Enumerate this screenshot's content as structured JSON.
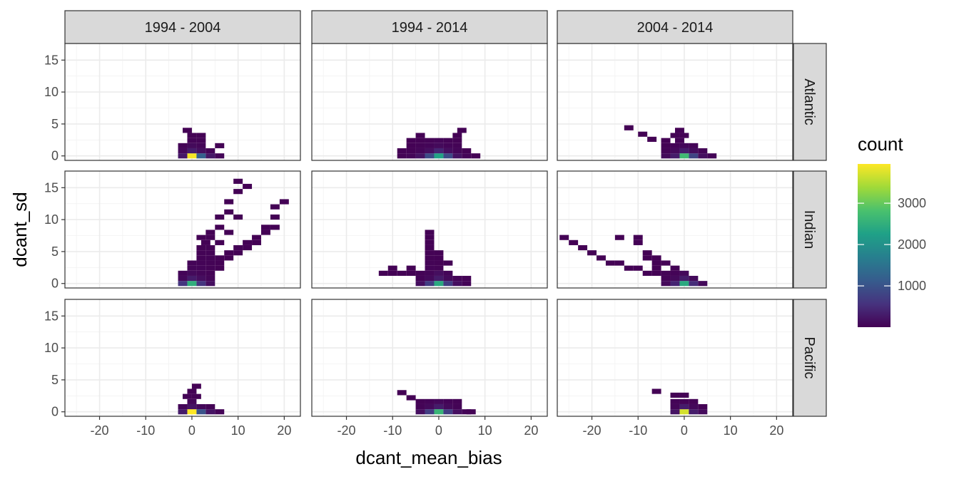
{
  "chart_data": {
    "type": "heatmap",
    "xlabel": "dcant_mean_bias",
    "ylabel": "dcant_sd",
    "xlim": [
      -27.5,
      23.5
    ],
    "ylim": [
      -0.7,
      17.6
    ],
    "x_ticks": [
      -20,
      -10,
      0,
      10,
      20
    ],
    "y_ticks": [
      0,
      5,
      10,
      15
    ],
    "bin_width": 2,
    "bin_height": 0.8,
    "legend": {
      "title": "count",
      "min": 1,
      "max": 3950,
      "ticks": [
        1000,
        2000,
        3000
      ],
      "colors": [
        "#440154",
        "#46337e",
        "#365c8d",
        "#277f8e",
        "#1fa187",
        "#4ac16d",
        "#a0da39",
        "#fde725"
      ]
    },
    "col_facets": [
      "1994 - 2004",
      "1994 - 2014",
      "2004 - 2014"
    ],
    "row_facets": [
      "Atlantic",
      "Indian",
      "Pacific"
    ],
    "panels": [
      {
        "col": "1994 - 2004",
        "row": "Atlantic",
        "cells": [
          [
            0,
            0,
            3900
          ],
          [
            -2,
            0,
            250
          ],
          [
            2,
            0,
            1200
          ],
          [
            4,
            0,
            250
          ],
          [
            6,
            0,
            60
          ],
          [
            0,
            0.8,
            300
          ],
          [
            -2,
            0.8,
            80
          ],
          [
            2,
            0.8,
            150
          ],
          [
            4,
            0.8,
            40
          ],
          [
            0,
            1.6,
            100
          ],
          [
            -2,
            1.6,
            30
          ],
          [
            2,
            1.6,
            60
          ],
          [
            6,
            1.6,
            20
          ],
          [
            0,
            2.4,
            40
          ],
          [
            2,
            2.4,
            30
          ],
          [
            0,
            3.2,
            20
          ],
          [
            2,
            3.2,
            15
          ],
          [
            -1,
            4.0,
            10
          ]
        ]
      },
      {
        "col": "1994 - 2014",
        "row": "Atlantic",
        "cells": [
          [
            0,
            0,
            2300
          ],
          [
            -2,
            0,
            900
          ],
          [
            2,
            0,
            900
          ],
          [
            -4,
            0,
            200
          ],
          [
            4,
            0,
            200
          ],
          [
            -6,
            0,
            60
          ],
          [
            6,
            0,
            50
          ],
          [
            8,
            0,
            20
          ],
          [
            -8,
            0,
            20
          ],
          [
            0,
            0.8,
            400
          ],
          [
            -2,
            0.8,
            150
          ],
          [
            2,
            0.8,
            150
          ],
          [
            -4,
            0.8,
            60
          ],
          [
            4,
            0.8,
            60
          ],
          [
            -6,
            0.8,
            20
          ],
          [
            6,
            0.8,
            20
          ],
          [
            -8,
            0.8,
            15
          ],
          [
            0,
            1.6,
            100
          ],
          [
            -2,
            1.6,
            50
          ],
          [
            2,
            1.6,
            50
          ],
          [
            -4,
            1.6,
            30
          ],
          [
            4,
            1.6,
            30
          ],
          [
            -6,
            1.6,
            15
          ],
          [
            0,
            2.4,
            50
          ],
          [
            -2,
            2.4,
            30
          ],
          [
            2,
            2.4,
            30
          ],
          [
            -4,
            2.4,
            20
          ],
          [
            4,
            2.4,
            20
          ],
          [
            -6,
            2.4,
            10
          ],
          [
            -4,
            3.2,
            10
          ],
          [
            4,
            3.2,
            15
          ],
          [
            5,
            4.0,
            10
          ]
        ]
      },
      {
        "col": "2004 - 2014",
        "row": "Atlantic",
        "cells": [
          [
            0,
            0,
            2700
          ],
          [
            -2,
            0,
            300
          ],
          [
            2,
            0,
            800
          ],
          [
            -4,
            0,
            100
          ],
          [
            4,
            0,
            150
          ],
          [
            6,
            0,
            40
          ],
          [
            0,
            0.8,
            300
          ],
          [
            -2,
            0.8,
            100
          ],
          [
            2,
            0.8,
            120
          ],
          [
            -4,
            0.8,
            30
          ],
          [
            4,
            0.8,
            40
          ],
          [
            0,
            1.6,
            80
          ],
          [
            -2,
            1.6,
            40
          ],
          [
            2,
            1.6,
            40
          ],
          [
            -4,
            1.6,
            20
          ],
          [
            -1,
            2.4,
            30
          ],
          [
            -4,
            2.4,
            15
          ],
          [
            -2,
            3.2,
            20
          ],
          [
            0,
            3.2,
            15
          ],
          [
            -1,
            4.0,
            10
          ],
          [
            -12,
            4.4,
            10
          ],
          [
            -9,
            3.4,
            10
          ],
          [
            -7,
            2.6,
            10
          ]
        ]
      },
      {
        "col": "1994 - 2004",
        "row": "Indian",
        "cells": [
          [
            0,
            0,
            2500
          ],
          [
            -2,
            0,
            600
          ],
          [
            2,
            0,
            600
          ],
          [
            4,
            0,
            150
          ],
          [
            0,
            0.8,
            300
          ],
          [
            -2,
            0.8,
            80
          ],
          [
            2,
            0.8,
            150
          ],
          [
            4,
            0.8,
            60
          ],
          [
            0,
            1.6,
            100
          ],
          [
            -2,
            1.6,
            40
          ],
          [
            2,
            1.6,
            60
          ],
          [
            4,
            1.6,
            30
          ],
          [
            0,
            2.4,
            60
          ],
          [
            2,
            2.4,
            50
          ],
          [
            4,
            2.4,
            30
          ],
          [
            6,
            2.4,
            20
          ],
          [
            0,
            3.2,
            40
          ],
          [
            2,
            3.2,
            40
          ],
          [
            4,
            3.2,
            30
          ],
          [
            6,
            3.2,
            20
          ],
          [
            2,
            4.0,
            30
          ],
          [
            4,
            4.0,
            30
          ],
          [
            6,
            4.0,
            20
          ],
          [
            8,
            4.0,
            20
          ],
          [
            2,
            4.8,
            30
          ],
          [
            4,
            4.8,
            30
          ],
          [
            8,
            4.8,
            15
          ],
          [
            10,
            4.8,
            15
          ],
          [
            2,
            5.6,
            20
          ],
          [
            4,
            5.6,
            20
          ],
          [
            10,
            5.6,
            15
          ],
          [
            12,
            5.6,
            10
          ],
          [
            3,
            6.4,
            15
          ],
          [
            6,
            6.4,
            10
          ],
          [
            12,
            6.4,
            10
          ],
          [
            14,
            6.4,
            10
          ],
          [
            2,
            7.2,
            10
          ],
          [
            4,
            7.2,
            10
          ],
          [
            14,
            7.2,
            10
          ],
          [
            4,
            8.0,
            10
          ],
          [
            8,
            8.0,
            10
          ],
          [
            16,
            8.0,
            10
          ],
          [
            6,
            8.8,
            10
          ],
          [
            16,
            8.8,
            10
          ],
          [
            18,
            8.8,
            10
          ],
          [
            6,
            10.4,
            10
          ],
          [
            10,
            10.4,
            10
          ],
          [
            18,
            10.4,
            10
          ],
          [
            8,
            11.2,
            10
          ],
          [
            18,
            12.0,
            10
          ],
          [
            8,
            12.8,
            10
          ],
          [
            20,
            12.8,
            10
          ],
          [
            10,
            14.4,
            10
          ],
          [
            12,
            15.2,
            10
          ],
          [
            10,
            16.0,
            10
          ]
        ]
      },
      {
        "col": "1994 - 2014",
        "row": "Indian",
        "cells": [
          [
            0,
            0,
            2400
          ],
          [
            -2,
            0,
            700
          ],
          [
            2,
            0,
            700
          ],
          [
            -4,
            0,
            150
          ],
          [
            4,
            0,
            150
          ],
          [
            6,
            0,
            40
          ],
          [
            0,
            0.8,
            300
          ],
          [
            -2,
            0.8,
            100
          ],
          [
            2,
            0.8,
            100
          ],
          [
            -4,
            0.8,
            40
          ],
          [
            4,
            0.8,
            40
          ],
          [
            6,
            0.8,
            20
          ],
          [
            0,
            1.6,
            150
          ],
          [
            -2,
            1.6,
            60
          ],
          [
            2,
            1.6,
            50
          ],
          [
            -4,
            1.6,
            30
          ],
          [
            -6,
            1.6,
            20
          ],
          [
            -8,
            1.6,
            15
          ],
          [
            -10,
            1.6,
            15
          ],
          [
            -12,
            1.6,
            10
          ],
          [
            -2,
            2.4,
            40
          ],
          [
            0,
            2.4,
            30
          ],
          [
            -6,
            2.4,
            15
          ],
          [
            -10,
            2.4,
            10
          ],
          [
            -2,
            3.2,
            30
          ],
          [
            0,
            3.2,
            20
          ],
          [
            2,
            3.2,
            10
          ],
          [
            -2,
            4.0,
            20
          ],
          [
            0,
            4.0,
            15
          ],
          [
            -2,
            4.8,
            20
          ],
          [
            0,
            4.8,
            15
          ],
          [
            -2,
            5.6,
            15
          ],
          [
            -2,
            6.4,
            15
          ],
          [
            -2,
            7.2,
            10
          ],
          [
            -2,
            8.0,
            10
          ]
        ]
      },
      {
        "col": "2004 - 2014",
        "row": "Indian",
        "cells": [
          [
            0,
            0,
            2400
          ],
          [
            -2,
            0,
            400
          ],
          [
            2,
            0,
            500
          ],
          [
            4,
            0,
            100
          ],
          [
            -4,
            0,
            80
          ],
          [
            0,
            0.8,
            300
          ],
          [
            -2,
            0.8,
            100
          ],
          [
            2,
            0.8,
            100
          ],
          [
            -4,
            0.8,
            40
          ],
          [
            0,
            1.6,
            80
          ],
          [
            -2,
            1.6,
            40
          ],
          [
            -4,
            1.6,
            30
          ],
          [
            -6,
            1.6,
            20
          ],
          [
            -8,
            1.6,
            15
          ],
          [
            -2,
            2.4,
            20
          ],
          [
            -6,
            2.4,
            15
          ],
          [
            -10,
            2.4,
            10
          ],
          [
            -12,
            2.4,
            10
          ],
          [
            -4,
            3.2,
            15
          ],
          [
            -6,
            3.2,
            15
          ],
          [
            -14,
            3.2,
            10
          ],
          [
            -16,
            3.2,
            10
          ],
          [
            -8,
            4.0,
            10
          ],
          [
            -6,
            4.0,
            10
          ],
          [
            -18,
            4.0,
            10
          ],
          [
            -8,
            4.8,
            10
          ],
          [
            -20,
            4.8,
            10
          ],
          [
            -22,
            5.6,
            10
          ],
          [
            -10,
            6.4,
            10
          ],
          [
            -24,
            6.4,
            10
          ],
          [
            -14,
            7.2,
            10
          ],
          [
            -26,
            7.2,
            10
          ],
          [
            -10,
            7.2,
            10
          ]
        ]
      },
      {
        "col": "1994 - 2004",
        "row": "Pacific",
        "cells": [
          [
            0,
            0,
            3950
          ],
          [
            -2,
            0,
            300
          ],
          [
            2,
            0,
            1000
          ],
          [
            4,
            0,
            200
          ],
          [
            6,
            0,
            40
          ],
          [
            0,
            0.8,
            200
          ],
          [
            -2,
            0.8,
            60
          ],
          [
            2,
            0.8,
            80
          ],
          [
            4,
            0.8,
            30
          ],
          [
            0,
            1.6,
            60
          ],
          [
            -1,
            2.4,
            30
          ],
          [
            1,
            2.4,
            20
          ],
          [
            0,
            3.2,
            15
          ],
          [
            1,
            4.0,
            10
          ]
        ]
      },
      {
        "col": "1994 - 2014",
        "row": "Pacific",
        "cells": [
          [
            0,
            0,
            2600
          ],
          [
            -2,
            0,
            700
          ],
          [
            2,
            0,
            700
          ],
          [
            -4,
            0,
            150
          ],
          [
            4,
            0,
            150
          ],
          [
            6,
            0,
            40
          ],
          [
            7,
            0,
            20
          ],
          [
            0,
            0.8,
            300
          ],
          [
            -2,
            0.8,
            100
          ],
          [
            2,
            0.8,
            100
          ],
          [
            -4,
            0.8,
            30
          ],
          [
            4,
            0.8,
            30
          ],
          [
            0,
            1.6,
            80
          ],
          [
            -2,
            1.6,
            40
          ],
          [
            2,
            1.6,
            40
          ],
          [
            -4,
            1.6,
            20
          ],
          [
            4,
            1.6,
            20
          ],
          [
            -6,
            2.2,
            10
          ],
          [
            -8,
            3.0,
            10
          ]
        ]
      },
      {
        "col": "2004 - 2014",
        "row": "Pacific",
        "cells": [
          [
            0,
            0,
            3700
          ],
          [
            2,
            0,
            300
          ],
          [
            -2,
            0,
            200
          ],
          [
            4,
            0,
            100
          ],
          [
            0,
            0.8,
            300
          ],
          [
            -2,
            0.8,
            60
          ],
          [
            2,
            0.8,
            80
          ],
          [
            4,
            0.8,
            20
          ],
          [
            -2,
            1.6,
            40
          ],
          [
            0,
            1.6,
            30
          ],
          [
            2,
            1.6,
            20
          ],
          [
            -2,
            2.6,
            20
          ],
          [
            0,
            2.6,
            10
          ],
          [
            -6,
            3.2,
            10
          ]
        ]
      }
    ]
  }
}
